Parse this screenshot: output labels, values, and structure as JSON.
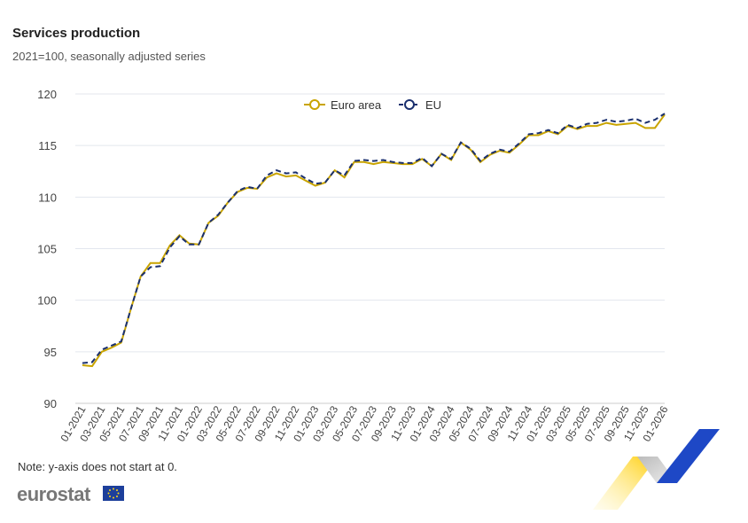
{
  "header": {
    "title": "Services production",
    "subtitle": "2021=100, seasonally adjusted series"
  },
  "footer": {
    "note": "Note: y-axis does not start at 0.",
    "logo": "eurostat"
  },
  "colors": {
    "euro_area": "#c9a400",
    "eu": "#1a2f6e",
    "grid": "#e3e6ee"
  },
  "chart_data": {
    "type": "line",
    "title": "Services production",
    "subtitle": "2021=100, seasonally adjusted series",
    "ylim": [
      90,
      120
    ],
    "yticks": [
      "90",
      "95",
      "100",
      "105",
      "110",
      "115",
      "120"
    ],
    "xtick_labels": [
      "01-2021",
      "03-2021",
      "05-2021",
      "07-2021",
      "09-2021",
      "11-2021",
      "01-2022",
      "03-2022",
      "05-2022",
      "07-2022",
      "09-2022",
      "11-2022",
      "01-2023",
      "03-2023",
      "05-2023",
      "07-2023",
      "09-2023",
      "11-2023",
      "01-2024",
      "03-2024",
      "05-2024",
      "07-2024",
      "09-2024",
      "11-2024",
      "01-2025",
      "03-2025",
      "05-2025",
      "07-2025",
      "09-2025",
      "11-2025",
      "01-2026"
    ],
    "legend": "top-center",
    "grid": true,
    "series": [
      {
        "name": "Euro area",
        "values": [
          93.7,
          93.6,
          95.0,
          95.4,
          95.9,
          99.2,
          102.3,
          103.6,
          103.6,
          105.3,
          106.3,
          105.5,
          105.4,
          107.5,
          108.2,
          109.5,
          110.5,
          110.9,
          110.8,
          111.9,
          112.3,
          112.0,
          112.1,
          111.6,
          111.1,
          111.4,
          112.6,
          111.9,
          113.4,
          113.4,
          113.2,
          113.4,
          113.3,
          113.2,
          113.2,
          113.7,
          113.0,
          114.2,
          113.6,
          115.3,
          114.6,
          113.4,
          114.1,
          114.5,
          114.3,
          115.1,
          116.0,
          116.0,
          116.4,
          116.1,
          116.9,
          116.6,
          116.9,
          116.9,
          117.2,
          117.0,
          117.1,
          117.2,
          116.7,
          116.7,
          118.0
        ]
      },
      {
        "name": "EU",
        "values": [
          93.9,
          94.0,
          95.2,
          95.6,
          96.0,
          99.2,
          102.3,
          103.2,
          103.3,
          105.1,
          106.2,
          105.4,
          105.4,
          107.5,
          108.3,
          109.5,
          110.6,
          111.0,
          110.8,
          112.1,
          112.6,
          112.3,
          112.4,
          111.8,
          111.3,
          111.4,
          112.6,
          112.1,
          113.5,
          113.6,
          113.5,
          113.6,
          113.4,
          113.3,
          113.3,
          113.8,
          113.0,
          114.2,
          113.7,
          115.3,
          114.7,
          113.5,
          114.2,
          114.6,
          114.4,
          115.2,
          116.1,
          116.2,
          116.5,
          116.2,
          117.0,
          116.7,
          117.1,
          117.2,
          117.5,
          117.3,
          117.4,
          117.6,
          117.2,
          117.5,
          118.1
        ]
      }
    ]
  }
}
